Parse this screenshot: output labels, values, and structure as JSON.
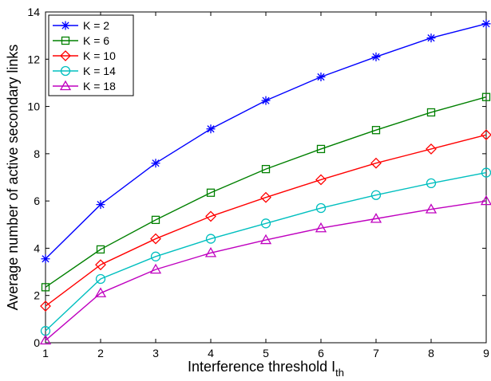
{
  "chart_data": {
    "type": "line",
    "xlabel": "Interference threshold I",
    "xlabel_sub": "th",
    "ylabel": "Average number of active secondary links",
    "xlim": [
      1,
      9
    ],
    "ylim": [
      0,
      14
    ],
    "x_ticks": [
      "1",
      "2",
      "3",
      "4",
      "5",
      "6",
      "7",
      "8",
      "9"
    ],
    "y_ticks": [
      "0",
      "2",
      "4",
      "6",
      "8",
      "10",
      "12",
      "14"
    ],
    "grid": false,
    "legend_position": "top-left",
    "x": [
      1,
      2,
      3,
      4,
      5,
      6,
      7,
      8,
      9
    ],
    "series": [
      {
        "name": "K = 2",
        "color": "#0000ff",
        "marker": "asterisk",
        "values": [
          3.55,
          5.85,
          7.6,
          9.05,
          10.25,
          11.25,
          12.1,
          12.9,
          13.5
        ]
      },
      {
        "name": "K = 6",
        "color": "#008000",
        "marker": "square",
        "values": [
          2.35,
          3.95,
          5.2,
          6.35,
          7.35,
          8.2,
          9.0,
          9.75,
          10.4
        ]
      },
      {
        "name": "K = 10",
        "color": "#ff0000",
        "marker": "diamond",
        "values": [
          1.55,
          3.3,
          4.4,
          5.35,
          6.15,
          6.9,
          7.6,
          8.2,
          8.8
        ]
      },
      {
        "name": "K = 14",
        "color": "#00bfbf",
        "marker": "circle",
        "values": [
          0.5,
          2.7,
          3.65,
          4.4,
          5.05,
          5.7,
          6.25,
          6.75,
          7.2
        ]
      },
      {
        "name": "K = 18",
        "color": "#bf00bf",
        "marker": "triangle",
        "values": [
          0.1,
          2.1,
          3.1,
          3.8,
          4.35,
          4.85,
          5.25,
          5.65,
          6.0
        ]
      }
    ]
  }
}
